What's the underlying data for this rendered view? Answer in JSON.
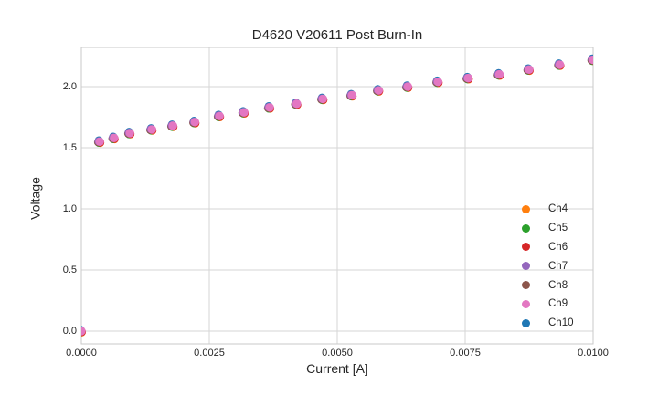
{
  "chart_data": {
    "type": "scatter",
    "title": "D4620 V20611 Post Burn-In",
    "xlabel": "Current [A]",
    "ylabel": "Voltage",
    "xlim": [
      0.0,
      0.01
    ],
    "ylim": [
      -0.105,
      2.321
    ],
    "xticks": [
      0.0,
      0.0025,
      0.005,
      0.0075,
      0.01
    ],
    "xtick_labels": [
      "0.0000",
      "0.0025",
      "0.0050",
      "0.0075",
      "0.0100"
    ],
    "yticks": [
      0.0,
      0.5,
      1.0,
      1.5,
      2.0
    ],
    "ytick_labels": [
      "0.0",
      "0.5",
      "1.0",
      "1.5",
      "2.0"
    ],
    "grid": true,
    "plot_border": true,
    "background_color": "#ffffff",
    "gridline_color": "#d6d6d6",
    "text_color": "#262626",
    "marker_shape": "circle",
    "legend_position": "lower right",
    "series": [
      {
        "name": "Ch4",
        "color": "#ff7f0e"
      },
      {
        "name": "Ch5",
        "color": "#2ca02c"
      },
      {
        "name": "Ch6",
        "color": "#d62728"
      },
      {
        "name": "Ch7",
        "color": "#9467bd"
      },
      {
        "name": "Ch8",
        "color": "#8c564b"
      },
      {
        "name": "Ch9",
        "color": "#e377c2"
      },
      {
        "name": "Ch10",
        "color": "#1f77b4"
      }
    ],
    "overlap_note": "All seven channels lie on top of each other within marker size; Ch9 (pink) is visually on top with thin fringes of the other channel colors at marker edges.",
    "x": [
      0.0,
      0.00036,
      0.00064,
      0.00095,
      0.00138,
      0.00179,
      0.00222,
      0.0027,
      0.00318,
      0.00368,
      0.00421,
      0.00472,
      0.00529,
      0.00581,
      0.00638,
      0.00697,
      0.00756,
      0.00817,
      0.00875,
      0.00935,
      0.01
    ],
    "y": [
      0.0,
      1.55,
      1.58,
      1.62,
      1.65,
      1.68,
      1.71,
      1.76,
      1.79,
      1.83,
      1.86,
      1.9,
      1.93,
      1.97,
      2.0,
      2.04,
      2.07,
      2.1,
      2.14,
      2.18,
      2.22
    ]
  }
}
